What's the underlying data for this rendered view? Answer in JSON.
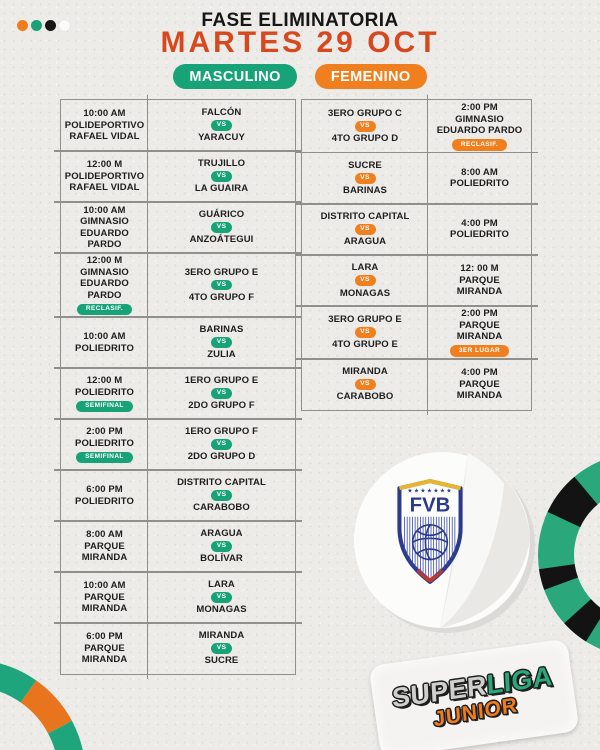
{
  "header": {
    "phase": "FASE ELIMINATORIA",
    "date": "MARTES 29 OCT"
  },
  "legend": {
    "masculino": "MASCULINO",
    "femenino": "FEMENINO"
  },
  "vs": "VS",
  "colors": {
    "masculino_green": "#17a377",
    "femenino_orange": "#f0801f",
    "date_orange": "#d8481e",
    "ring_green": "#2aa87c",
    "line_gray": "#8f8f8c"
  },
  "decor_dots": [
    {
      "color": "#f07c1e"
    },
    {
      "color": "#17a377"
    },
    {
      "color": "#161616"
    },
    {
      "color": "#fafaf9"
    }
  ],
  "masculino": {
    "rows": [
      {
        "time": "10:00 AM",
        "venue1": "POLIDEPORTIVO",
        "venue2": "RAFAEL VIDAL",
        "team1": "FALCÓN",
        "team2": "YARACUY"
      },
      {
        "time": "12:00 M",
        "venue1": "POLIDEPORTIVO",
        "venue2": "RAFAEL VIDAL",
        "team1": "TRUJILLO",
        "team2": "LA GUAIRA"
      },
      {
        "time": "10:00 AM",
        "venue1": "GIMNASIO",
        "venue2": "EDUARDO PARDO",
        "team1": "GUÁRICO",
        "team2": "ANZOÁTEGUI"
      },
      {
        "time": "12:00 M",
        "venue1": "GIMNASIO",
        "venue2": "EDUARDO PARDO",
        "badge": "RECLASIF.",
        "team1": "3ERO GRUPO E",
        "team2": "4TO GRUPO F"
      },
      {
        "time": "10:00 AM",
        "venue1": "POLIEDRITO",
        "team1": "BARINAS",
        "team2": "ZULIA"
      },
      {
        "time": "12:00 M",
        "venue1": "POLIEDRITO",
        "badge": "SEMIFINAL",
        "team1": "1ERO GRUPO E",
        "team2": "2DO GRUPO F"
      },
      {
        "time": "2:00 PM",
        "venue1": "POLIEDRITO",
        "badge": "SEMIFINAL",
        "team1": "1ERO GRUPO F",
        "team2": "2DO GRUPO D"
      },
      {
        "time": "6:00 PM",
        "venue1": "POLIEDRITO",
        "team1": "DISTRITO CAPITAL",
        "team2": "CARABOBO"
      },
      {
        "time": "8:00 AM",
        "venue1": "PARQUE",
        "venue2": "MIRANDA",
        "team1": "ARAGUA",
        "team2": "BOLÍVAR"
      },
      {
        "time": "10:00 AM",
        "venue1": "PARQUE",
        "venue2": "MIRANDA",
        "team1": "LARA",
        "team2": "MONAGAS"
      },
      {
        "time": "6:00 PM",
        "venue1": "PARQUE",
        "venue2": "MIRANDA",
        "team1": "MIRANDA",
        "team2": "SUCRE"
      }
    ]
  },
  "femenino": {
    "rows": [
      {
        "team1": "3ERO GRUPO C",
        "team2": "4TO GRUPO D",
        "time": "2:00 PM",
        "venue1": "GIMNASIO",
        "venue2": "EDUARDO PARDO",
        "badge": "RECLASIF."
      },
      {
        "team1": "SUCRE",
        "team2": "BARINAS",
        "time": "8:00 AM",
        "venue1": "POLIEDRITO"
      },
      {
        "team1": "DISTRITO CAPITAL",
        "team2": "ARAGUA",
        "time": "4:00 PM",
        "venue1": "POLIEDRITO"
      },
      {
        "team1": "LARA",
        "team2": "MONAGAS",
        "time": "12: 00 M",
        "venue1": "PARQUE",
        "venue2": "MIRANDA"
      },
      {
        "team1": "3ERO GRUPO E",
        "team2": "4TO GRUPO E",
        "time": "2:00 PM",
        "venue1": "PARQUE",
        "venue2": "MIRANDA",
        "badge": "3ER LUGAR"
      },
      {
        "team1": "MIRANDA",
        "team2": "CARABOBO",
        "time": "4:00 PM",
        "venue1": "PARQUE",
        "venue2": "MIRANDA"
      }
    ]
  },
  "stickers": {
    "fvb": {
      "label": "FVB",
      "stars": "★★★★★★★"
    },
    "superliga": {
      "word1": "SUPER",
      "word2": "LIGA",
      "word3": "JUNIOR"
    }
  }
}
